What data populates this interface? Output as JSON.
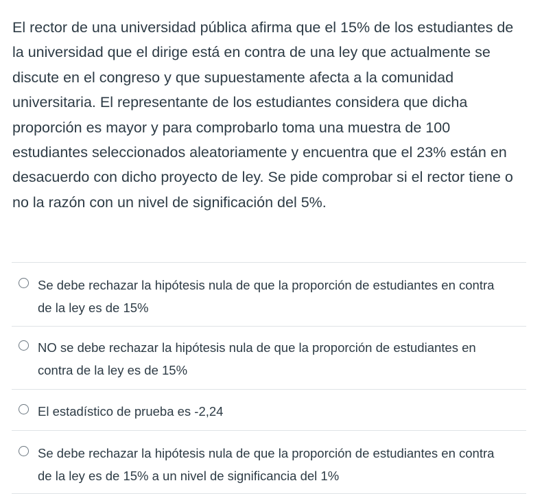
{
  "question": {
    "text": "El rector de una universidad pública afirma que el 15% de los estudiantes de la universidad que el dirige está en contra de una ley que actualmente se discute en el congreso y que supuestamente afecta a la comunidad universitaria. El representante de los estudiantes considera que dicha proporción es mayor y para comprobarlo toma una muestra de 100 estudiantes seleccionados aleatoriamente y encuentra que el 23% están en desacuerdo con dicho proyecto de ley. Se pide comprobar si el rector tiene o no la razón con un nivel de significación del 5%."
  },
  "answers": [
    {
      "label": "Se debe rechazar la hipótesis nula de que la proporción de estudiantes en contra de la ley es de 15%",
      "selected": false
    },
    {
      "label": "NO se debe rechazar la hipótesis nula de que la proporción de estudiantes en contra de la ley es de 15%",
      "selected": false
    },
    {
      "label": "El estadístico de prueba es -2,24",
      "selected": false
    },
    {
      "label": "Se debe rechazar la hipótesis nula de que la proporción de estudiantes en contra de la ley es de 15% a un nivel de significancia del 1%",
      "selected": false
    }
  ]
}
